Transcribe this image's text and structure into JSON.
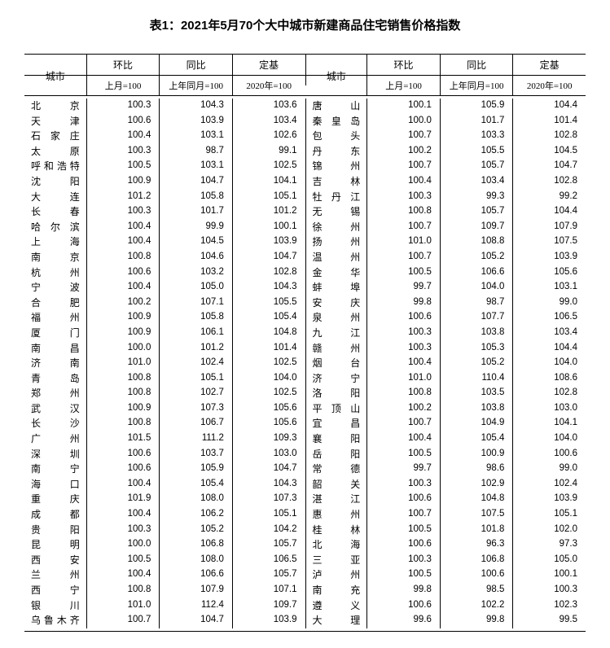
{
  "title": "表1：2021年5月70个大中城市新建商品住宅销售价格指数",
  "headers": {
    "city": "城市",
    "mom": "环比",
    "yoy": "同比",
    "base": "定基",
    "mom_sub": "上月=100",
    "yoy_sub": "上年同月=100",
    "base_sub": "2020年=100"
  },
  "left": [
    {
      "city": "北　　京",
      "mom": "100.3",
      "yoy": "104.3",
      "base": "103.6"
    },
    {
      "city": "天　　津",
      "mom": "100.6",
      "yoy": "103.9",
      "base": "103.4"
    },
    {
      "city": "石 家 庄",
      "mom": "100.4",
      "yoy": "103.1",
      "base": "102.6"
    },
    {
      "city": "太　　原",
      "mom": "100.3",
      "yoy": "98.7",
      "base": "99.1"
    },
    {
      "city": "呼和浩特",
      "mom": "100.5",
      "yoy": "103.1",
      "base": "102.5"
    },
    {
      "city": "沈　　阳",
      "mom": "100.9",
      "yoy": "104.7",
      "base": "104.1"
    },
    {
      "city": "大　　连",
      "mom": "101.2",
      "yoy": "105.8",
      "base": "105.1"
    },
    {
      "city": "长　　春",
      "mom": "100.3",
      "yoy": "101.7",
      "base": "101.2"
    },
    {
      "city": "哈 尔 滨",
      "mom": "100.4",
      "yoy": "99.9",
      "base": "100.1"
    },
    {
      "city": "上　　海",
      "mom": "100.4",
      "yoy": "104.5",
      "base": "103.9"
    },
    {
      "city": "南　　京",
      "mom": "100.8",
      "yoy": "104.6",
      "base": "104.7"
    },
    {
      "city": "杭　　州",
      "mom": "100.6",
      "yoy": "103.2",
      "base": "102.8"
    },
    {
      "city": "宁　　波",
      "mom": "100.4",
      "yoy": "105.0",
      "base": "104.3"
    },
    {
      "city": "合　　肥",
      "mom": "100.2",
      "yoy": "107.1",
      "base": "105.5"
    },
    {
      "city": "福　　州",
      "mom": "100.9",
      "yoy": "105.8",
      "base": "105.4"
    },
    {
      "city": "厦　　门",
      "mom": "100.9",
      "yoy": "106.1",
      "base": "104.8"
    },
    {
      "city": "南　　昌",
      "mom": "100.0",
      "yoy": "101.2",
      "base": "101.4"
    },
    {
      "city": "济　　南",
      "mom": "101.0",
      "yoy": "102.4",
      "base": "102.5"
    },
    {
      "city": "青　　岛",
      "mom": "100.8",
      "yoy": "105.1",
      "base": "104.0"
    },
    {
      "city": "郑　　州",
      "mom": "100.8",
      "yoy": "102.7",
      "base": "102.5"
    },
    {
      "city": "武　　汉",
      "mom": "100.9",
      "yoy": "107.3",
      "base": "105.6"
    },
    {
      "city": "长　　沙",
      "mom": "100.8",
      "yoy": "106.7",
      "base": "105.6"
    },
    {
      "city": "广　　州",
      "mom": "101.5",
      "yoy": "111.2",
      "base": "109.3"
    },
    {
      "city": "深　　圳",
      "mom": "100.6",
      "yoy": "103.7",
      "base": "103.0"
    },
    {
      "city": "南　　宁",
      "mom": "100.6",
      "yoy": "105.9",
      "base": "104.7"
    },
    {
      "city": "海　　口",
      "mom": "100.4",
      "yoy": "105.4",
      "base": "104.3"
    },
    {
      "city": "重　　庆",
      "mom": "101.9",
      "yoy": "108.0",
      "base": "107.3"
    },
    {
      "city": "成　　都",
      "mom": "100.4",
      "yoy": "106.2",
      "base": "105.1"
    },
    {
      "city": "贵　　阳",
      "mom": "100.3",
      "yoy": "105.2",
      "base": "104.2"
    },
    {
      "city": "昆　　明",
      "mom": "100.0",
      "yoy": "106.8",
      "base": "105.7"
    },
    {
      "city": "西　　安",
      "mom": "100.5",
      "yoy": "108.0",
      "base": "106.5"
    },
    {
      "city": "兰　　州",
      "mom": "100.4",
      "yoy": "106.6",
      "base": "105.7"
    },
    {
      "city": "西　　宁",
      "mom": "100.8",
      "yoy": "107.9",
      "base": "107.1"
    },
    {
      "city": "银　　川",
      "mom": "101.0",
      "yoy": "112.4",
      "base": "109.7"
    },
    {
      "city": "乌鲁木齐",
      "mom": "100.7",
      "yoy": "104.7",
      "base": "103.9"
    }
  ],
  "right": [
    {
      "city": "唐　　山",
      "mom": "100.1",
      "yoy": "105.9",
      "base": "104.4"
    },
    {
      "city": "秦 皇 岛",
      "mom": "100.0",
      "yoy": "101.7",
      "base": "101.4"
    },
    {
      "city": "包　　头",
      "mom": "100.7",
      "yoy": "103.3",
      "base": "102.8"
    },
    {
      "city": "丹　　东",
      "mom": "100.2",
      "yoy": "105.5",
      "base": "104.5"
    },
    {
      "city": "锦　　州",
      "mom": "100.7",
      "yoy": "105.7",
      "base": "104.7"
    },
    {
      "city": "吉　　林",
      "mom": "100.4",
      "yoy": "103.4",
      "base": "102.8"
    },
    {
      "city": "牡 丹 江",
      "mom": "100.3",
      "yoy": "99.3",
      "base": "99.2"
    },
    {
      "city": "无　　锡",
      "mom": "100.8",
      "yoy": "105.7",
      "base": "104.4"
    },
    {
      "city": "徐　　州",
      "mom": "100.7",
      "yoy": "109.7",
      "base": "107.9"
    },
    {
      "city": "扬　　州",
      "mom": "101.0",
      "yoy": "108.8",
      "base": "107.5"
    },
    {
      "city": "温　　州",
      "mom": "100.7",
      "yoy": "105.2",
      "base": "103.9"
    },
    {
      "city": "金　　华",
      "mom": "100.5",
      "yoy": "106.6",
      "base": "105.6"
    },
    {
      "city": "蚌　　埠",
      "mom": "99.7",
      "yoy": "104.0",
      "base": "103.1"
    },
    {
      "city": "安　　庆",
      "mom": "99.8",
      "yoy": "98.7",
      "base": "99.0"
    },
    {
      "city": "泉　　州",
      "mom": "100.6",
      "yoy": "107.7",
      "base": "106.5"
    },
    {
      "city": "九　　江",
      "mom": "100.3",
      "yoy": "103.8",
      "base": "103.4"
    },
    {
      "city": "赣　　州",
      "mom": "100.3",
      "yoy": "105.3",
      "base": "104.4"
    },
    {
      "city": "烟　　台",
      "mom": "100.4",
      "yoy": "105.2",
      "base": "104.0"
    },
    {
      "city": "济　　宁",
      "mom": "101.0",
      "yoy": "110.4",
      "base": "108.6"
    },
    {
      "city": "洛　　阳",
      "mom": "100.8",
      "yoy": "103.5",
      "base": "102.8"
    },
    {
      "city": "平 顶 山",
      "mom": "100.2",
      "yoy": "103.8",
      "base": "103.0"
    },
    {
      "city": "宜　　昌",
      "mom": "100.7",
      "yoy": "104.9",
      "base": "104.1"
    },
    {
      "city": "襄　　阳",
      "mom": "100.4",
      "yoy": "105.4",
      "base": "104.0"
    },
    {
      "city": "岳　　阳",
      "mom": "100.5",
      "yoy": "100.9",
      "base": "100.6"
    },
    {
      "city": "常　　德",
      "mom": "99.7",
      "yoy": "98.6",
      "base": "99.0"
    },
    {
      "city": "韶　　关",
      "mom": "100.3",
      "yoy": "102.9",
      "base": "102.4"
    },
    {
      "city": "湛　　江",
      "mom": "100.6",
      "yoy": "104.8",
      "base": "103.9"
    },
    {
      "city": "惠　　州",
      "mom": "100.7",
      "yoy": "107.5",
      "base": "105.1"
    },
    {
      "city": "桂　　林",
      "mom": "100.5",
      "yoy": "101.8",
      "base": "102.0"
    },
    {
      "city": "北　　海",
      "mom": "100.6",
      "yoy": "96.3",
      "base": "97.3"
    },
    {
      "city": "三　　亚",
      "mom": "100.3",
      "yoy": "106.8",
      "base": "105.0"
    },
    {
      "city": "泸　　州",
      "mom": "100.5",
      "yoy": "100.6",
      "base": "100.1"
    },
    {
      "city": "南　　充",
      "mom": "99.8",
      "yoy": "98.5",
      "base": "100.3"
    },
    {
      "city": "遵　　义",
      "mom": "100.6",
      "yoy": "102.2",
      "base": "102.3"
    },
    {
      "city": "大　　理",
      "mom": "99.6",
      "yoy": "99.8",
      "base": "99.5"
    }
  ]
}
